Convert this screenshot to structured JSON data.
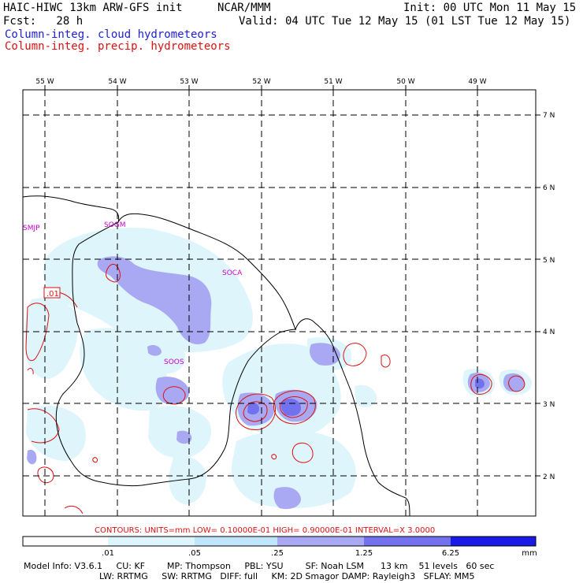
{
  "header": {
    "model": "HAIC-HIWC 13km ARW-GFS init",
    "org": "NCAR/MMM",
    "init": "Init: 00 UTC Mon 11 May 15",
    "fcst": "Fcst:   28 h",
    "valid": "Valid: 04 UTC Tue 12 May 15 (01 LST Tue 12 May 15)",
    "field_cloud": "Column-integ. cloud hydrometeors",
    "field_precip": "Column-integ. precip. hydrometeors"
  },
  "map": {
    "lon_labels": [
      "55 W",
      "54 W",
      "53 W",
      "52 W",
      "51 W",
      "50 W",
      "49 W"
    ],
    "lat_labels": [
      "7 N",
      "6 N",
      "5 N",
      "4 N",
      "3 N",
      "2 N"
    ],
    "stations": [
      "SMJP",
      "SOGM",
      "SOCA",
      "SOOS"
    ],
    "contour_label": ".01",
    "cloud_colors": [
      "#ddf5fb",
      "#a9a9f3",
      "#7272ee",
      "#2c2ce8"
    ],
    "precip_color": "#dd1111"
  },
  "contours_line": "CONTOURS:  UNITS=mm  LOW= 0.10000E-01  HIGH= 0.90000E-01  INTERVAL=X  3.0000",
  "colorbar": {
    "ticks": [
      ".01",
      ".05",
      ".25",
      "1.25",
      "6.25"
    ],
    "unit": "mm",
    "colors": [
      "#ffffff",
      "#ddf5fb",
      "#bfe6fa",
      "#a9a9f3",
      "#7272ee",
      "#4747e0",
      "#1a1ae6"
    ]
  },
  "model_info": {
    "line1": "Model Info: V3.6.1     CU: KF        MP: Thompson     PBL: YSU        SF: Noah LSM      13 km    51 levels   60 sec",
    "line2": "LW: RRTMG     SW: RRTMG   DIFF: full     KM: 2D Smagor DAMP: Rayleigh3   SFLAY: MM5"
  }
}
